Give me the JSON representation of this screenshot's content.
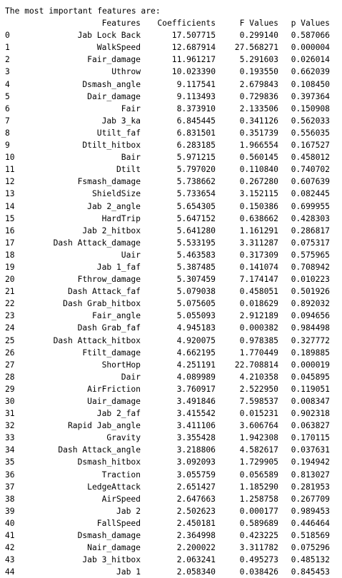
{
  "intro": "The most important features are:",
  "columns": [
    "Features",
    "Coefficients",
    "F Values",
    "p Values"
  ],
  "rows": [
    {
      "index": "0",
      "feature": "Jab Lock Back",
      "coef": "17.507715",
      "f": "0.299140",
      "p": "0.587066"
    },
    {
      "index": "1",
      "feature": "WalkSpeed",
      "coef": "12.687914",
      "f": "27.568271",
      "p": "0.000004"
    },
    {
      "index": "2",
      "feature": "Fair_damage",
      "coef": "11.961217",
      "f": "5.291603",
      "p": "0.026014"
    },
    {
      "index": "3",
      "feature": "Uthrow",
      "coef": "10.023390",
      "f": "0.193550",
      "p": "0.662039"
    },
    {
      "index": "4",
      "feature": "Dsmash_angle",
      "coef": "9.117541",
      "f": "2.679843",
      "p": "0.108450"
    },
    {
      "index": "5",
      "feature": "Dair_damage",
      "coef": "9.113493",
      "f": "0.729836",
      "p": "0.397364"
    },
    {
      "index": "6",
      "feature": "Fair",
      "coef": "8.373910",
      "f": "2.133506",
      "p": "0.150908"
    },
    {
      "index": "7",
      "feature": "Jab 3_ka",
      "coef": "6.845445",
      "f": "0.341126",
      "p": "0.562033"
    },
    {
      "index": "8",
      "feature": "Utilt_faf",
      "coef": "6.831501",
      "f": "0.351739",
      "p": "0.556035"
    },
    {
      "index": "9",
      "feature": "Dtilt_hitbox",
      "coef": "6.283185",
      "f": "1.966554",
      "p": "0.167527"
    },
    {
      "index": "10",
      "feature": "Bair",
      "coef": "5.971215",
      "f": "0.560145",
      "p": "0.458012"
    },
    {
      "index": "11",
      "feature": "Dtilt",
      "coef": "5.797020",
      "f": "0.110840",
      "p": "0.740702"
    },
    {
      "index": "12",
      "feature": "Fsmash_damage",
      "coef": "5.738662",
      "f": "0.267280",
      "p": "0.607639"
    },
    {
      "index": "13",
      "feature": "ShieldSize",
      "coef": "5.733654",
      "f": "3.152115",
      "p": "0.082445"
    },
    {
      "index": "14",
      "feature": "Jab 2_angle",
      "coef": "5.654305",
      "f": "0.150386",
      "p": "0.699955"
    },
    {
      "index": "15",
      "feature": "HardTrip",
      "coef": "5.647152",
      "f": "0.638662",
      "p": "0.428303"
    },
    {
      "index": "16",
      "feature": "Jab 2_hitbox",
      "coef": "5.641280",
      "f": "1.161291",
      "p": "0.286817"
    },
    {
      "index": "17",
      "feature": "Dash Attack_damage",
      "coef": "5.533195",
      "f": "3.311287",
      "p": "0.075317"
    },
    {
      "index": "18",
      "feature": "Uair",
      "coef": "5.463583",
      "f": "0.317309",
      "p": "0.575965"
    },
    {
      "index": "19",
      "feature": "Jab 1_faf",
      "coef": "5.387485",
      "f": "0.141074",
      "p": "0.708942"
    },
    {
      "index": "20",
      "feature": "Fthrow_damage",
      "coef": "5.307459",
      "f": "7.174147",
      "p": "0.010223"
    },
    {
      "index": "21",
      "feature": "Dash Attack_faf",
      "coef": "5.079038",
      "f": "0.458051",
      "p": "0.501926"
    },
    {
      "index": "22",
      "feature": "Dash Grab_hitbox",
      "coef": "5.075605",
      "f": "0.018629",
      "p": "0.892032"
    },
    {
      "index": "23",
      "feature": "Fair_angle",
      "coef": "5.055093",
      "f": "2.912189",
      "p": "0.094656"
    },
    {
      "index": "24",
      "feature": "Dash Grab_faf",
      "coef": "4.945183",
      "f": "0.000382",
      "p": "0.984498"
    },
    {
      "index": "25",
      "feature": "Dash Attack_hitbox",
      "coef": "4.920075",
      "f": "0.978385",
      "p": "0.327772"
    },
    {
      "index": "26",
      "feature": "Ftilt_damage",
      "coef": "4.662195",
      "f": "1.770449",
      "p": "0.189885"
    },
    {
      "index": "27",
      "feature": "ShortHop",
      "coef": "4.251191",
      "f": "22.708814",
      "p": "0.000019"
    },
    {
      "index": "28",
      "feature": "Dair",
      "coef": "4.089989",
      "f": "4.210358",
      "p": "0.045895"
    },
    {
      "index": "29",
      "feature": "AirFriction",
      "coef": "3.760917",
      "f": "2.522950",
      "p": "0.119051"
    },
    {
      "index": "30",
      "feature": "Uair_damage",
      "coef": "3.491846",
      "f": "7.598537",
      "p": "0.008347"
    },
    {
      "index": "31",
      "feature": "Jab 2_faf",
      "coef": "3.415542",
      "f": "0.015231",
      "p": "0.902318"
    },
    {
      "index": "32",
      "feature": "Rapid Jab_angle",
      "coef": "3.411106",
      "f": "3.606764",
      "p": "0.063827"
    },
    {
      "index": "33",
      "feature": "Gravity",
      "coef": "3.355428",
      "f": "1.942308",
      "p": "0.170115"
    },
    {
      "index": "34",
      "feature": "Dash Attack_angle",
      "coef": "3.218806",
      "f": "4.582617",
      "p": "0.037631"
    },
    {
      "index": "35",
      "feature": "Dsmash_hitbox",
      "coef": "3.092093",
      "f": "1.729905",
      "p": "0.194942"
    },
    {
      "index": "36",
      "feature": "Traction",
      "coef": "3.055759",
      "f": "0.056589",
      "p": "0.813027"
    },
    {
      "index": "37",
      "feature": "LedgeAttack",
      "coef": "2.651427",
      "f": "1.185290",
      "p": "0.281953"
    },
    {
      "index": "38",
      "feature": "AirSpeed",
      "coef": "2.647663",
      "f": "1.258758",
      "p": "0.267709"
    },
    {
      "index": "39",
      "feature": "Jab 2",
      "coef": "2.502623",
      "f": "0.000177",
      "p": "0.989453"
    },
    {
      "index": "40",
      "feature": "FallSpeed",
      "coef": "2.450181",
      "f": "0.589689",
      "p": "0.446464"
    },
    {
      "index": "41",
      "feature": "Dsmash_damage",
      "coef": "2.364998",
      "f": "0.423225",
      "p": "0.518569"
    },
    {
      "index": "42",
      "feature": "Nair_damage",
      "coef": "2.200022",
      "f": "3.311782",
      "p": "0.075296"
    },
    {
      "index": "43",
      "feature": "Jab 3_hitbox",
      "coef": "2.063241",
      "f": "0.495273",
      "p": "0.485132"
    },
    {
      "index": "44",
      "feature": "Jab 1",
      "coef": "2.058340",
      "f": "0.038426",
      "p": "0.845453"
    }
  ]
}
